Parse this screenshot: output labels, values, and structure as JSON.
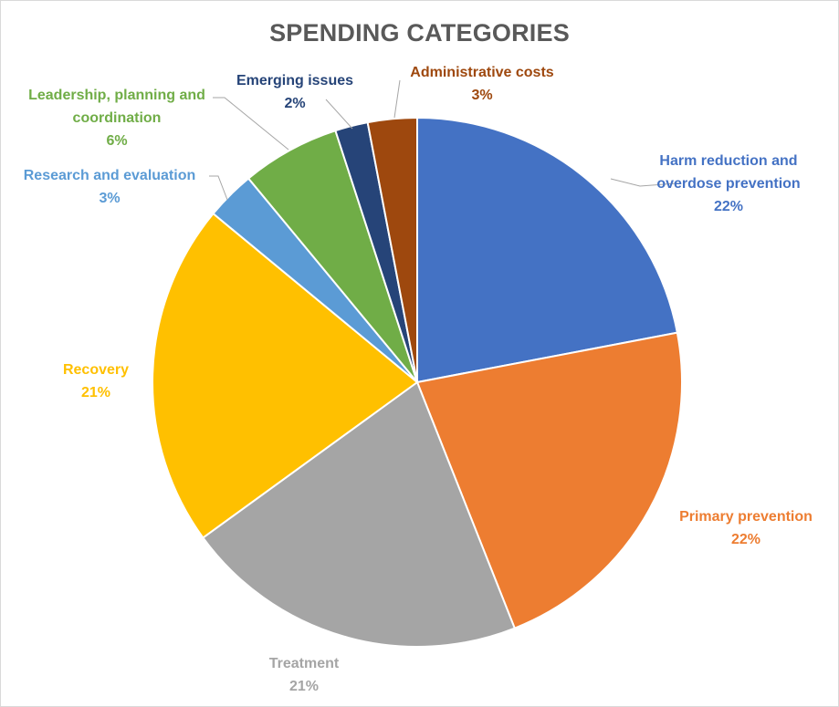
{
  "chart_data": {
    "type": "pie",
    "title": "SPENDING CATEGORIES",
    "slices": [
      {
        "name": "Harm reduction and overdose prevention",
        "lines": [
          "Harm reduction and",
          "overdose prevention"
        ],
        "value": 22,
        "label": "22%",
        "color": "#4472C4"
      },
      {
        "name": "Primary prevention",
        "lines": [
          "Primary prevention"
        ],
        "value": 22,
        "label": "22%",
        "color": "#ED7D31"
      },
      {
        "name": "Treatment",
        "lines": [
          "Treatment"
        ],
        "value": 21,
        "label": "21%",
        "color": "#A5A5A5"
      },
      {
        "name": "Recovery",
        "lines": [
          "Recovery"
        ],
        "value": 21,
        "label": "21%",
        "color": "#FFC000"
      },
      {
        "name": "Research and evaluation",
        "lines": [
          "Research and evaluation"
        ],
        "value": 3,
        "label": "3%",
        "color": "#5B9BD5"
      },
      {
        "name": "Leadership, planning and coordination",
        "lines": [
          "Leadership, planning and",
          "coordination"
        ],
        "value": 6,
        "label": "6%",
        "color": "#70AD47"
      },
      {
        "name": "Emerging issues",
        "lines": [
          "Emerging issues"
        ],
        "value": 2,
        "label": "2%",
        "color": "#264478"
      },
      {
        "name": "Administrative costs",
        "lines": [
          "Administrative costs"
        ],
        "value": 3,
        "label": "3%",
        "color": "#9E480E"
      }
    ],
    "start": "12 o'clock",
    "direction": "clockwise",
    "legend": "none",
    "data_labels": "outside with leader lines"
  }
}
